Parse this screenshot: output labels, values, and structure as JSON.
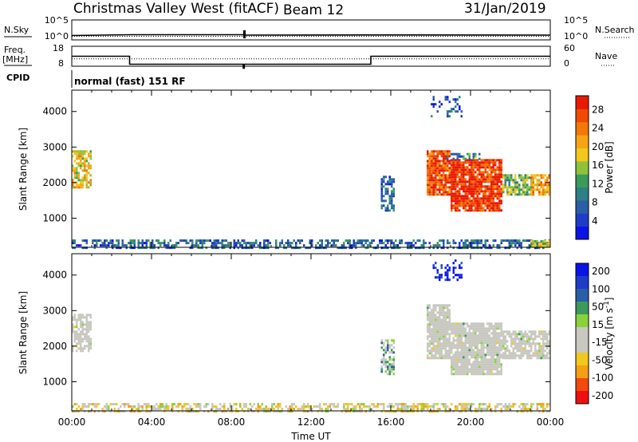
{
  "header": {
    "station": "Christmas Valley West (fitACF)",
    "beam": "Beam 12",
    "date": "31/Jan/2019"
  },
  "aux_labels": {
    "nsky": "N.Sky",
    "nsearch": "N.Search",
    "freq_line1": "Freq.",
    "freq_line2": "[MHz]",
    "nave": "Nave",
    "cpid": "CPID",
    "cpid_value": "normal (fast) 151 RF"
  },
  "aux_ticks": {
    "noise_left": [
      "10^5",
      "10^0"
    ],
    "noise_right": [
      "10^5",
      "10^0"
    ],
    "freq_left": [
      "18",
      "8"
    ],
    "nave_right": [
      "60",
      "0"
    ]
  },
  "colors": {
    "power_scale": [
      "#0a14e6",
      "#1f3cc8",
      "#2a5ea6",
      "#2f7f86",
      "#3c9a5a",
      "#8fc23c",
      "#f2c81e",
      "#f5a514",
      "#f2780a",
      "#f04a05",
      "#e81a05"
    ],
    "velocity_scale": [
      "#ee1010",
      "#f24a10",
      "#f5a014",
      "#f2c81e",
      "#c8c8c0",
      "#c8c8c0",
      "#8ad23c",
      "#3c9a5a",
      "#2a5ea6",
      "#1f3cc8",
      "#0a14e6"
    ],
    "ground_scatter": "#c8c8c0"
  },
  "chart_data": [
    {
      "type": "line",
      "title": "N.Sky / N.Search",
      "x": [
        0,
        3,
        8.6,
        8.65,
        15,
        24
      ],
      "y": [
        1.1,
        1.3,
        1.3,
        1.2,
        1.25,
        1.2
      ],
      "ylim": [
        0,
        5
      ],
      "yscale": "log",
      "ytick_labels": [
        "10^5",
        "10^0"
      ]
    },
    {
      "type": "line",
      "title": "Freq. [MHz] / Nave",
      "series": [
        {
          "name": "Freq.",
          "x": [
            0,
            2.9,
            2.9,
            8.6,
            8.6,
            8.65,
            8.65,
            15,
            15,
            24
          ],
          "y": [
            13,
            13,
            9,
            9,
            7,
            7,
            9,
            9,
            13,
            13
          ]
        },
        {
          "name": "Nave",
          "x": [
            0,
            24
          ],
          "y": [
            22,
            22
          ]
        }
      ],
      "ylim_left": [
        8,
        18
      ],
      "ylim_right": [
        0,
        60
      ]
    },
    {
      "type": "heatmap",
      "title": "Power [dB]",
      "ylabel": "Slant Range [km]",
      "xlim": [
        0,
        24
      ],
      "ylim": [
        180,
        4600
      ],
      "yticks": [
        1000,
        2000,
        3000,
        4000
      ],
      "colorbar": {
        "label": "Power [dB]",
        "ticks": [
          4,
          8,
          12,
          16,
          20,
          24,
          28
        ],
        "range": [
          0,
          31
        ]
      },
      "regions": [
        {
          "t0": 0.0,
          "t1": 0.9,
          "r0": 1900,
          "r1": 2950,
          "level": 0.6,
          "density": 0.7
        },
        {
          "t0": 0.0,
          "t1": 24.0,
          "r0": 200,
          "r1": 450,
          "level": 0.25,
          "density": 0.55
        },
        {
          "t0": 15.5,
          "t1": 16.2,
          "r0": 1250,
          "r1": 2250,
          "level": 0.25,
          "density": 0.6
        },
        {
          "t0": 17.8,
          "t1": 19.0,
          "r0": 1700,
          "r1": 2950,
          "level": 0.85,
          "density": 0.9
        },
        {
          "t0": 19.0,
          "t1": 21.6,
          "r0": 1250,
          "r1": 2700,
          "level": 0.9,
          "density": 0.9
        },
        {
          "t0": 21.6,
          "t1": 23.2,
          "r0": 1700,
          "r1": 2300,
          "level": 0.45,
          "density": 0.8
        },
        {
          "t0": 23.0,
          "t1": 24.0,
          "r0": 1700,
          "r1": 2300,
          "level": 0.7,
          "density": 0.7
        },
        {
          "t0": 18.8,
          "t1": 20.5,
          "r0": 2700,
          "r1": 2900,
          "level": 0.35,
          "density": 0.5
        },
        {
          "t0": 18.0,
          "t1": 19.6,
          "r0": 3900,
          "r1": 4450,
          "level": 0.2,
          "density": 0.25
        },
        {
          "t0": 23.0,
          "t1": 24.0,
          "r0": 250,
          "r1": 420,
          "level": 0.55,
          "density": 0.9
        }
      ]
    },
    {
      "type": "heatmap",
      "title": "Velocity [m s-1]",
      "ylabel": "Slant Range [km]",
      "xlabel": "Time UT",
      "xlim": [
        0,
        24
      ],
      "ylim": [
        180,
        4600
      ],
      "yticks": [
        1000,
        2000,
        3000,
        4000
      ],
      "xtick_labels": [
        "00:00",
        "04:00",
        "08:00",
        "12:00",
        "16:00",
        "20:00",
        "00:00"
      ],
      "colorbar": {
        "label": "Velocity [m s-1]",
        "ticks": [
          200,
          100,
          50,
          15,
          -15,
          -50,
          -100,
          -200
        ]
      },
      "regions": [
        {
          "t0": 0.0,
          "t1": 0.9,
          "r0": 1900,
          "r1": 2950,
          "level": 0.5,
          "density": 0.7,
          "ground": true
        },
        {
          "t0": 0.0,
          "t1": 24.0,
          "r0": 200,
          "r1": 450,
          "level": 0.4,
          "density": 0.55
        },
        {
          "t0": 15.5,
          "t1": 16.2,
          "r0": 1250,
          "r1": 2250,
          "level": 0.6,
          "density": 0.6
        },
        {
          "t0": 17.8,
          "t1": 19.0,
          "r0": 1700,
          "r1": 3200,
          "level": 0.5,
          "density": 0.9,
          "ground": true
        },
        {
          "t0": 19.0,
          "t1": 21.6,
          "r0": 1250,
          "r1": 2700,
          "level": 0.5,
          "density": 0.9,
          "ground": true
        },
        {
          "t0": 21.6,
          "t1": 24.0,
          "r0": 1700,
          "r1": 2500,
          "level": 0.5,
          "density": 0.8,
          "ground": true
        },
        {
          "t0": 18.0,
          "t1": 19.6,
          "r0": 3900,
          "r1": 4450,
          "level": 0.95,
          "density": 0.25
        }
      ]
    }
  ]
}
